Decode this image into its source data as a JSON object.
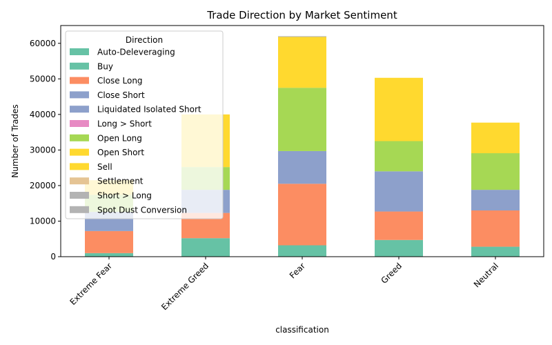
{
  "chart_data": {
    "type": "bar",
    "stacked": true,
    "title": "Trade Direction by Market Sentiment",
    "xlabel": "classification",
    "ylabel": "Number of Trades",
    "ylim": [
      0,
      65000
    ],
    "yticks": [
      0,
      10000,
      20000,
      30000,
      40000,
      50000,
      60000
    ],
    "grid": false,
    "legend": {
      "title": "Direction",
      "placement": "top-left"
    },
    "categories": [
      "Extreme Fear",
      "Extreme Greed",
      "Fear",
      "Greed",
      "Neutral"
    ],
    "series": [
      {
        "name": "Auto-Deleveraging",
        "color": "#66c2a5",
        "values": [
          0,
          0,
          0,
          0,
          0
        ]
      },
      {
        "name": "Buy",
        "color": "#66c2a5",
        "values": [
          1000,
          5200,
          3200,
          4700,
          2800
        ]
      },
      {
        "name": "Close Long",
        "color": "#fc8d62",
        "values": [
          6200,
          7100,
          17300,
          8000,
          10200
        ]
      },
      {
        "name": "Close Short",
        "color": "#8da0cb",
        "values": [
          5400,
          6500,
          9200,
          11300,
          5800
        ]
      },
      {
        "name": "Liquidated Isolated Short",
        "color": "#8da0cb",
        "values": [
          0,
          0,
          0,
          0,
          0
        ]
      },
      {
        "name": "Long > Short",
        "color": "#e78ac3",
        "values": [
          0,
          0,
          0,
          0,
          0
        ]
      },
      {
        "name": "Open Long",
        "color": "#a6d854",
        "values": [
          4800,
          6400,
          17800,
          8500,
          10300
        ]
      },
      {
        "name": "Open Short",
        "color": "#ffd92f",
        "values": [
          4100,
          14800,
          14300,
          17800,
          8600
        ]
      },
      {
        "name": "Sell",
        "color": "#ffd92f",
        "values": [
          0,
          0,
          0,
          0,
          0
        ]
      },
      {
        "name": "Settlement",
        "color": "#e5c494",
        "values": [
          0,
          0,
          0,
          0,
          0
        ]
      },
      {
        "name": "Short > Long",
        "color": "#b3b3b3",
        "values": [
          0,
          0,
          200,
          0,
          0
        ]
      },
      {
        "name": "Spot Dust Conversion",
        "color": "#b3b3b3",
        "values": [
          0,
          0,
          0,
          0,
          0
        ]
      }
    ]
  }
}
